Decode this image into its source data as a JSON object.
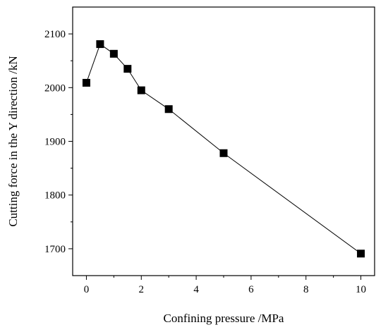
{
  "chart_data": {
    "type": "line",
    "title": "",
    "xlabel": "Confining pressure /MPa",
    "ylabel": "Cutting force in the Y direction /kN",
    "xlim": [
      -0.5,
      10.5
    ],
    "ylim": [
      1650,
      2150
    ],
    "xticks": [
      0,
      2,
      4,
      6,
      8,
      10
    ],
    "yticks": [
      1700,
      1800,
      1900,
      2000,
      2100
    ],
    "xminor": [
      1,
      3,
      5,
      7,
      9
    ],
    "yminor": [
      1750,
      1850,
      1950,
      2050
    ],
    "grid": false,
    "legend": "none",
    "marker": "square",
    "color": "#000000",
    "series": [
      {
        "x": [
          0,
          0.5,
          1,
          1.5,
          2,
          3,
          5,
          10
        ],
        "y": [
          2009,
          2081,
          2063,
          2035,
          1995,
          1960,
          1878,
          1691
        ]
      }
    ]
  }
}
